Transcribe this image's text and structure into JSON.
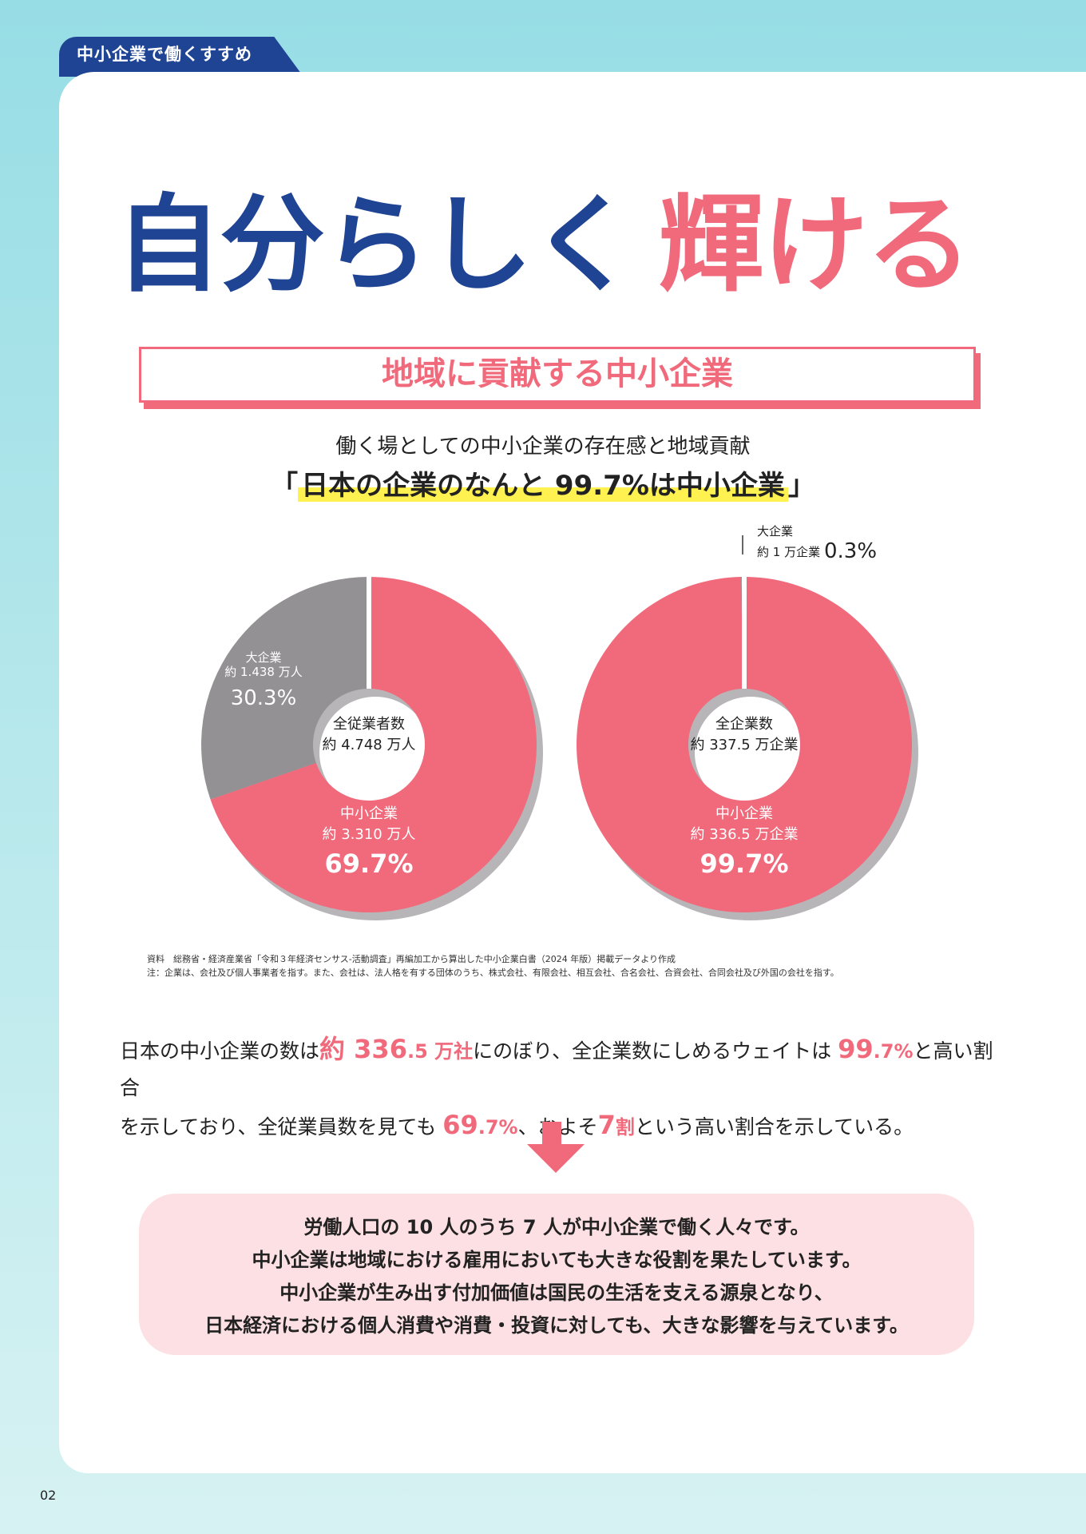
{
  "header": {
    "tab_label": "中小企業で働くすすめ",
    "page_number": "02"
  },
  "hero": {
    "title_part1": "自分らしく",
    "title_part2": "輝ける"
  },
  "section": {
    "title": "地域に貢献する中小企業"
  },
  "intro": {
    "lead": "働く場としての中小企業の存在感と地域貢献",
    "open_bracket": "「",
    "headline": "日本の企業のなんと 99.7%は中小企業",
    "close_bracket": "」"
  },
  "chart_data": [
    {
      "type": "pie",
      "center_label": [
        "全従業者数",
        "約 4.748 万人"
      ],
      "slices": [
        {
          "name": "中小企業",
          "detail": "約 3.310 万人",
          "percent_label": "69.7%",
          "value": 69.7,
          "color": "#f06a7c"
        },
        {
          "name": "大企業",
          "detail": "約 1.438 万人",
          "percent_label": "30.3%",
          "value": 30.3,
          "color": "#939193"
        }
      ]
    },
    {
      "type": "pie",
      "center_label": [
        "全企業数",
        "約 337.5 万企業"
      ],
      "slices": [
        {
          "name": "中小企業",
          "detail": "約 336.5 万企業",
          "percent_label": "99.7%",
          "value": 99.7,
          "color": "#f06a7c"
        },
        {
          "name": "大企業",
          "detail": "約 1 万企業",
          "percent_label": "0.3%",
          "value": 0.3,
          "color": "#939193"
        }
      ]
    }
  ],
  "sources": {
    "line1": "資料　総務省・経済産業省「令和３年経済センサス‐活動調査」再編加工から算出した中小企業白書（2024 年版）掲載データより作成",
    "line2": "注：企業は、会社及び個人事業者を指す。また、会社は、法人格を有する団体のうち、株式会社、有限会社、相互会社、合名会社、合資会社、合同会社及び外国の会社を指す。"
  },
  "body": {
    "t1": "日本の中小企業の数は",
    "e1a": "約 336",
    "e1b": ".5 万社",
    "t2": "にのぼり、全企業数にしめるウェイトは ",
    "e2a": "99",
    "e2b": ".7%",
    "t3": "と高い割合",
    "t4": "を示しており、全従業員数を見ても ",
    "e3a": "69",
    "e3b": ".7%",
    "t5": "、およそ",
    "e4a": "7",
    "e4b": "割",
    "t6": "という高い割合を示している。"
  },
  "summary": {
    "lines": [
      "労働人口の 10 人のうち 7 人が中小企業で働く人々です。",
      "中小企業は地域における雇用においても大きな役割を果たしています。",
      "中小企業が生み出す付加価値は国民の生活を支える源泉となり、",
      "日本経済における個人消費や消費・投資に対しても、大きな影響を与えています。"
    ]
  }
}
